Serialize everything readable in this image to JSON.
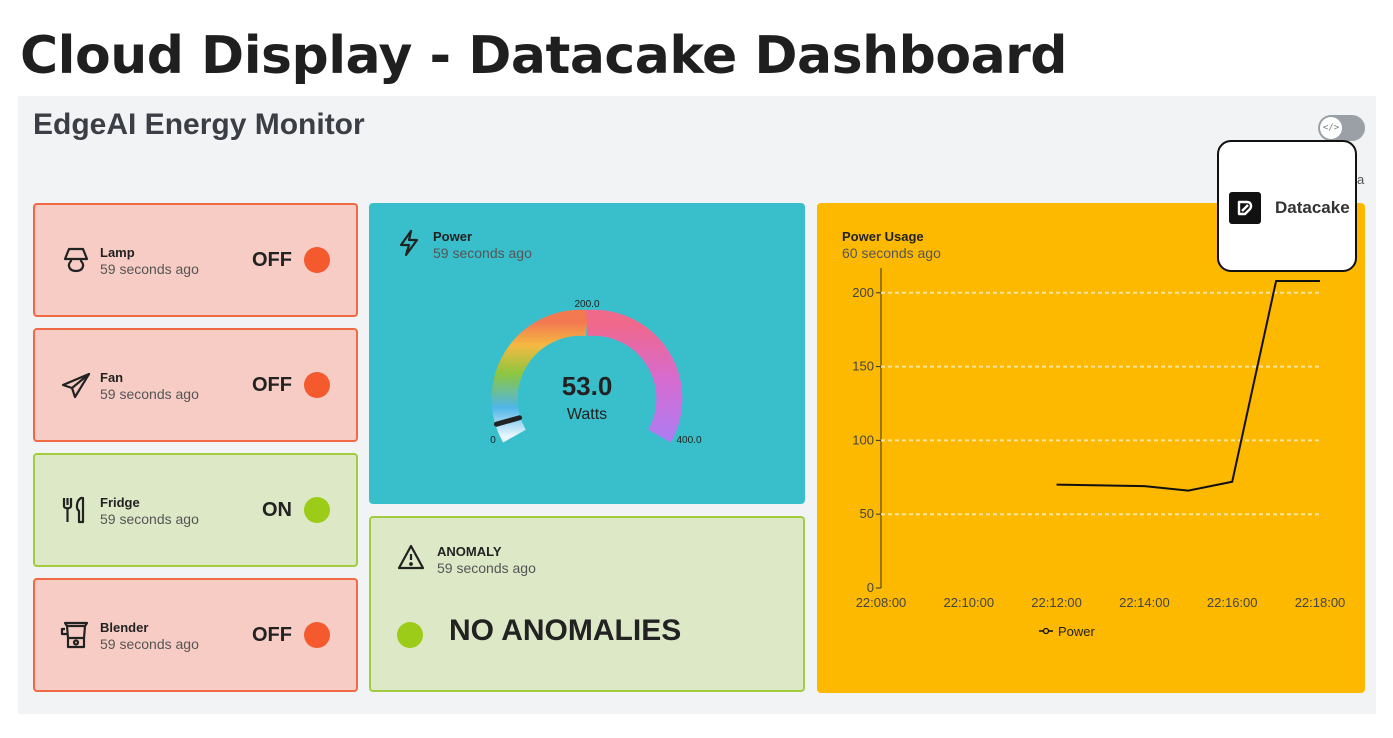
{
  "slide": {
    "title": "Cloud Display - Datacake Dashboard"
  },
  "dashboard": {
    "title": "EdgeAI Energy Monitor",
    "edge_label": "a",
    "devices": [
      {
        "name": "Lamp",
        "time": "59 seconds ago",
        "state": "OFF",
        "icon": "lamp-icon"
      },
      {
        "name": "Fan",
        "time": "59 seconds ago",
        "state": "OFF",
        "icon": "paper-plane-icon"
      },
      {
        "name": "Fridge",
        "time": "59 seconds ago",
        "state": "ON",
        "icon": "cutlery-icon"
      },
      {
        "name": "Blender",
        "time": "59 seconds ago",
        "state": "OFF",
        "icon": "blender-icon"
      }
    ],
    "power": {
      "name": "Power",
      "time": "59 seconds ago",
      "value": "53.0",
      "unit": "Watts",
      "gauge_min": "0",
      "gauge_mid": "200.0",
      "gauge_max": "400.0",
      "gauge_value": 53
    },
    "anomaly": {
      "name": "ANOMALY",
      "time": "59 seconds ago",
      "status": "NO ANOMALIES"
    },
    "usage": {
      "name": "Power Usage",
      "time": "60 seconds ago"
    },
    "popup": {
      "label": "Datacake"
    },
    "colors": {
      "off": "#f5592e",
      "on": "#9ccc18",
      "power_card": "#39bfcb",
      "usage_card": "#fcb900"
    }
  },
  "chart_data": {
    "type": "line",
    "title": "Power Usage",
    "x": [
      "22:12:00",
      "22:13:00",
      "22:14:00",
      "22:15:00",
      "22:16:00",
      "22:17:00",
      "22:18:00"
    ],
    "series": [
      {
        "name": "Power",
        "values": [
          70,
          69.5,
          69,
          66,
          72,
          208,
          208
        ]
      }
    ],
    "x_ticks": [
      "22:08:00",
      "22:10:00",
      "22:12:00",
      "22:14:00",
      "22:16:00",
      "22:18:00"
    ],
    "y_ticks": [
      "0",
      "50",
      "100",
      "150",
      "200"
    ],
    "ylim": [
      0,
      210
    ],
    "grid": true,
    "legend": "bottom"
  }
}
